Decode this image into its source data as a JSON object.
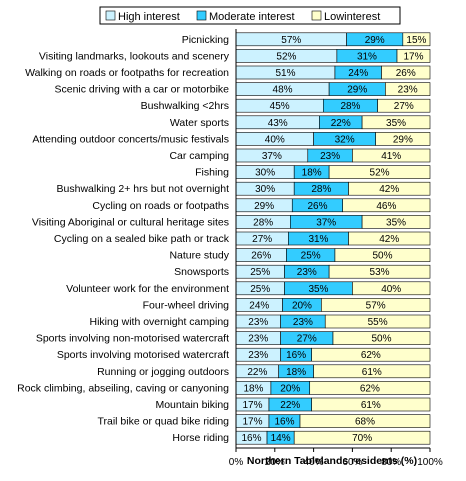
{
  "chart_data": {
    "type": "bar",
    "orientation": "horizontal",
    "stacked": "percent",
    "xlabel": "Northern Tablelands residents (%)",
    "ylabel": "",
    "xlim": [
      0,
      100
    ],
    "xticks": [
      "0%",
      "20%",
      "40%",
      "60%",
      "80%",
      "100%"
    ],
    "legend_position": "top",
    "grid": false,
    "categories": [
      "Picnicking",
      "Visiting landmarks, lookouts and scenery",
      "Walking on roads or footpaths for recreation",
      "Scenic driving with a car or motorbike",
      "Bushwalking <2hrs",
      "Water sports",
      "Attending outdoor concerts/music festivals",
      "Car camping",
      "Fishing",
      "Bushwalking 2+ hrs but not overnight",
      "Cycling on roads or footpaths",
      "Visiting Aboriginal or cultural heritage sites",
      "Cycling on a sealed bike path or track",
      "Nature study",
      "Snowsports",
      "Volunteer work for the environment",
      "Four-wheel driving",
      "Hiking with overnight camping",
      "Sports involving non-motorised watercraft",
      "Sports involving motorised watercraft",
      "Running or jogging outdoors",
      "Rock climbing, abseiling, caving or canyoning",
      "Mountain biking",
      "Trail bike or quad bike riding",
      "Horse riding"
    ],
    "series": [
      {
        "name": "High interest",
        "color": "#ccf2ff",
        "values": [
          57,
          52,
          51,
          48,
          45,
          43,
          40,
          37,
          30,
          30,
          29,
          28,
          27,
          26,
          25,
          25,
          24,
          23,
          23,
          23,
          22,
          18,
          17,
          17,
          16
        ]
      },
      {
        "name": "Moderate interest",
        "color": "#33ccff",
        "values": [
          29,
          31,
          24,
          29,
          28,
          22,
          32,
          23,
          18,
          28,
          26,
          37,
          31,
          25,
          23,
          35,
          20,
          23,
          27,
          16,
          18,
          20,
          22,
          16,
          14
        ]
      },
      {
        "name": "Lowinterest",
        "color": "#ffffcc",
        "values": [
          15,
          17,
          26,
          23,
          27,
          35,
          29,
          41,
          52,
          42,
          46,
          35,
          42,
          50,
          53,
          40,
          57,
          55,
          50,
          62,
          61,
          62,
          61,
          68,
          70
        ]
      }
    ]
  }
}
